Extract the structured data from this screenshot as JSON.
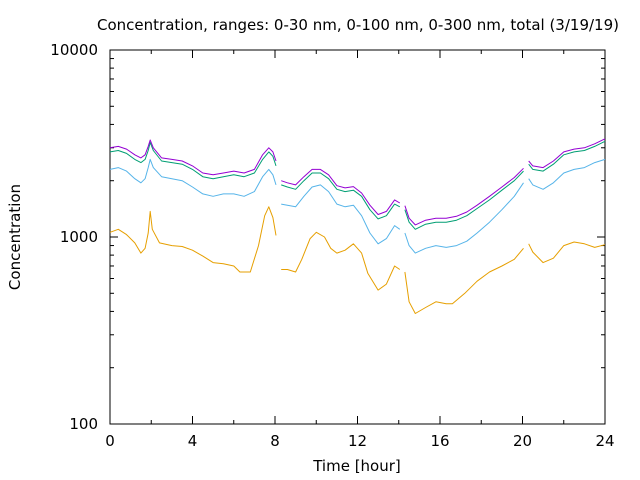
{
  "chart_data": {
    "type": "line",
    "title": "Concentration, ranges: 0-30 nm, 0-100 nm, 0-300 nm, total (3/19/19)",
    "xlabel": "Time [hour]",
    "ylabel": "Concentration",
    "xlim": [
      0,
      24
    ],
    "ylim": [
      100,
      10000
    ],
    "yscale": "log",
    "xticks": [
      0,
      4,
      8,
      12,
      16,
      20,
      24
    ],
    "yticks": [
      100,
      1000,
      10000
    ],
    "xtick_labels": [
      "0",
      "4",
      "8",
      "12",
      "16",
      "20",
      "24"
    ],
    "ytick_labels": [
      "100",
      "1000",
      "10000"
    ],
    "grid": false,
    "legend": "none",
    "colors": [
      "#e69f00",
      "#56b4e9",
      "#009e73",
      "#9400d3"
    ],
    "series": [
      {
        "segments": [
          [
            [
              0,
              1060
            ],
            [
              0.4,
              1100
            ],
            [
              0.8,
              1030
            ],
            [
              1.2,
              930
            ],
            [
              1.5,
              820
            ],
            [
              1.7,
              870
            ],
            [
              1.85,
              1050
            ],
            [
              1.95,
              1370
            ],
            [
              2.05,
              1100
            ],
            [
              2.4,
              930
            ],
            [
              3,
              900
            ],
            [
              3.5,
              890
            ],
            [
              4,
              850
            ],
            [
              4.5,
              790
            ],
            [
              5,
              730
            ],
            [
              5.5,
              720
            ],
            [
              6,
              700
            ],
            [
              6.3,
              650
            ],
            [
              6.8,
              650
            ],
            [
              7.2,
              900
            ],
            [
              7.5,
              1300
            ],
            [
              7.7,
              1450
            ],
            [
              7.9,
              1270
            ],
            [
              8.05,
              1020
            ]
          ],
          [
            [
              8.3,
              670
            ],
            [
              8.6,
              670
            ],
            [
              9,
              650
            ],
            [
              9.3,
              760
            ],
            [
              9.7,
              980
            ],
            [
              10,
              1060
            ],
            [
              10.4,
              1000
            ],
            [
              10.7,
              870
            ],
            [
              11,
              820
            ],
            [
              11.4,
              850
            ],
            [
              11.8,
              920
            ],
            [
              12.2,
              820
            ],
            [
              12.5,
              640
            ],
            [
              13,
              520
            ],
            [
              13.4,
              560
            ],
            [
              13.8,
              700
            ],
            [
              14.05,
              670
            ]
          ],
          [
            [
              14.3,
              650
            ],
            [
              14.5,
              450
            ],
            [
              14.8,
              390
            ],
            [
              15.3,
              420
            ],
            [
              15.8,
              450
            ],
            [
              16.3,
              440
            ],
            [
              16.6,
              440
            ],
            [
              17.2,
              500
            ],
            [
              17.8,
              580
            ],
            [
              18.4,
              650
            ],
            [
              19,
              700
            ],
            [
              19.6,
              760
            ],
            [
              20.05,
              870
            ]
          ],
          [
            [
              20.3,
              920
            ],
            [
              20.5,
              830
            ],
            [
              21,
              730
            ],
            [
              21.5,
              770
            ],
            [
              22,
              900
            ],
            [
              22.5,
              940
            ],
            [
              23,
              920
            ],
            [
              23.5,
              880
            ],
            [
              24,
              910
            ]
          ]
        ]
      },
      {
        "segments": [
          [
            [
              0,
              2300
            ],
            [
              0.4,
              2350
            ],
            [
              0.8,
              2250
            ],
            [
              1.2,
              2050
            ],
            [
              1.5,
              1950
            ],
            [
              1.7,
              2050
            ],
            [
              1.85,
              2350
            ],
            [
              1.95,
              2600
            ],
            [
              2.1,
              2350
            ],
            [
              2.5,
              2100
            ],
            [
              3,
              2050
            ],
            [
              3.5,
              2000
            ],
            [
              4,
              1850
            ],
            [
              4.5,
              1700
            ],
            [
              5,
              1650
            ],
            [
              5.5,
              1700
            ],
            [
              6,
              1700
            ],
            [
              6.5,
              1650
            ],
            [
              7,
              1750
            ],
            [
              7.4,
              2100
            ],
            [
              7.7,
              2300
            ],
            [
              7.9,
              2150
            ],
            [
              8.05,
              1900
            ]
          ],
          [
            [
              8.3,
              1500
            ],
            [
              8.6,
              1480
            ],
            [
              9,
              1450
            ],
            [
              9.4,
              1650
            ],
            [
              9.8,
              1850
            ],
            [
              10.2,
              1900
            ],
            [
              10.6,
              1750
            ],
            [
              11,
              1500
            ],
            [
              11.4,
              1450
            ],
            [
              11.8,
              1480
            ],
            [
              12.2,
              1300
            ],
            [
              12.6,
              1050
            ],
            [
              13,
              920
            ],
            [
              13.4,
              980
            ],
            [
              13.8,
              1150
            ],
            [
              14.05,
              1100
            ]
          ],
          [
            [
              14.3,
              1050
            ],
            [
              14.5,
              900
            ],
            [
              14.8,
              820
            ],
            [
              15.3,
              870
            ],
            [
              15.8,
              900
            ],
            [
              16.3,
              880
            ],
            [
              16.8,
              900
            ],
            [
              17.3,
              950
            ],
            [
              17.8,
              1050
            ],
            [
              18.4,
              1200
            ],
            [
              19,
              1400
            ],
            [
              19.6,
              1650
            ],
            [
              20.05,
              1950
            ]
          ],
          [
            [
              20.3,
              2050
            ],
            [
              20.5,
              1900
            ],
            [
              21,
              1800
            ],
            [
              21.5,
              1950
            ],
            [
              22,
              2200
            ],
            [
              22.5,
              2300
            ],
            [
              23,
              2350
            ],
            [
              23.5,
              2500
            ],
            [
              24,
              2600
            ]
          ]
        ]
      },
      {
        "segments": [
          [
            [
              0,
              2850
            ],
            [
              0.4,
              2900
            ],
            [
              0.8,
              2800
            ],
            [
              1.2,
              2600
            ],
            [
              1.5,
              2500
            ],
            [
              1.7,
              2600
            ],
            [
              1.85,
              2900
            ],
            [
              1.95,
              3200
            ],
            [
              2.1,
              2900
            ],
            [
              2.5,
              2550
            ],
            [
              3,
              2500
            ],
            [
              3.5,
              2450
            ],
            [
              4,
              2300
            ],
            [
              4.5,
              2100
            ],
            [
              5,
              2050
            ],
            [
              5.5,
              2100
            ],
            [
              6,
              2150
            ],
            [
              6.5,
              2100
            ],
            [
              7,
              2200
            ],
            [
              7.4,
              2600
            ],
            [
              7.7,
              2850
            ],
            [
              7.9,
              2700
            ],
            [
              8.05,
              2400
            ]
          ],
          [
            [
              8.3,
              1900
            ],
            [
              8.6,
              1850
            ],
            [
              9,
              1800
            ],
            [
              9.4,
              2000
            ],
            [
              9.8,
              2200
            ],
            [
              10.2,
              2200
            ],
            [
              10.6,
              2050
            ],
            [
              11,
              1800
            ],
            [
              11.4,
              1750
            ],
            [
              11.8,
              1780
            ],
            [
              12.2,
              1650
            ],
            [
              12.6,
              1400
            ],
            [
              13,
              1250
            ],
            [
              13.4,
              1300
            ],
            [
              13.8,
              1500
            ],
            [
              14.05,
              1450
            ]
          ],
          [
            [
              14.3,
              1400
            ],
            [
              14.5,
              1200
            ],
            [
              14.8,
              1100
            ],
            [
              15.3,
              1170
            ],
            [
              15.8,
              1200
            ],
            [
              16.3,
              1200
            ],
            [
              16.8,
              1230
            ],
            [
              17.3,
              1300
            ],
            [
              17.8,
              1420
            ],
            [
              18.4,
              1580
            ],
            [
              19,
              1780
            ],
            [
              19.6,
              2000
            ],
            [
              20.05,
              2250
            ]
          ],
          [
            [
              20.3,
              2450
            ],
            [
              20.5,
              2300
            ],
            [
              21,
              2250
            ],
            [
              21.5,
              2450
            ],
            [
              22,
              2750
            ],
            [
              22.5,
              2850
            ],
            [
              23,
              2900
            ],
            [
              23.5,
              3050
            ],
            [
              24,
              3250
            ]
          ]
        ]
      },
      {
        "segments": [
          [
            [
              0,
              3000
            ],
            [
              0.4,
              3050
            ],
            [
              0.8,
              2950
            ],
            [
              1.2,
              2750
            ],
            [
              1.5,
              2650
            ],
            [
              1.7,
              2750
            ],
            [
              1.85,
              3050
            ],
            [
              1.95,
              3300
            ],
            [
              2.1,
              3000
            ],
            [
              2.5,
              2650
            ],
            [
              3,
              2600
            ],
            [
              3.5,
              2550
            ],
            [
              4,
              2400
            ],
            [
              4.5,
              2200
            ],
            [
              5,
              2150
            ],
            [
              5.5,
              2200
            ],
            [
              6,
              2250
            ],
            [
              6.5,
              2200
            ],
            [
              7,
              2300
            ],
            [
              7.4,
              2750
            ],
            [
              7.7,
              3000
            ],
            [
              7.9,
              2850
            ],
            [
              8.05,
              2550
            ]
          ],
          [
            [
              8.3,
              2000
            ],
            [
              8.6,
              1950
            ],
            [
              9,
              1900
            ],
            [
              9.4,
              2100
            ],
            [
              9.8,
              2300
            ],
            [
              10.2,
              2300
            ],
            [
              10.6,
              2150
            ],
            [
              11,
              1880
            ],
            [
              11.4,
              1830
            ],
            [
              11.8,
              1860
            ],
            [
              12.2,
              1720
            ],
            [
              12.6,
              1480
            ],
            [
              13,
              1320
            ],
            [
              13.4,
              1370
            ],
            [
              13.8,
              1580
            ],
            [
              14.05,
              1520
            ]
          ],
          [
            [
              14.3,
              1470
            ],
            [
              14.5,
              1260
            ],
            [
              14.8,
              1160
            ],
            [
              15.3,
              1230
            ],
            [
              15.8,
              1260
            ],
            [
              16.3,
              1260
            ],
            [
              16.8,
              1290
            ],
            [
              17.3,
              1360
            ],
            [
              17.8,
              1480
            ],
            [
              18.4,
              1650
            ],
            [
              19,
              1850
            ],
            [
              19.6,
              2080
            ],
            [
              20.05,
              2330
            ]
          ],
          [
            [
              20.3,
              2550
            ],
            [
              20.5,
              2400
            ],
            [
              21,
              2350
            ],
            [
              21.5,
              2550
            ],
            [
              22,
              2850
            ],
            [
              22.5,
              2950
            ],
            [
              23,
              3000
            ],
            [
              23.5,
              3150
            ],
            [
              24,
              3350
            ]
          ]
        ]
      }
    ]
  }
}
